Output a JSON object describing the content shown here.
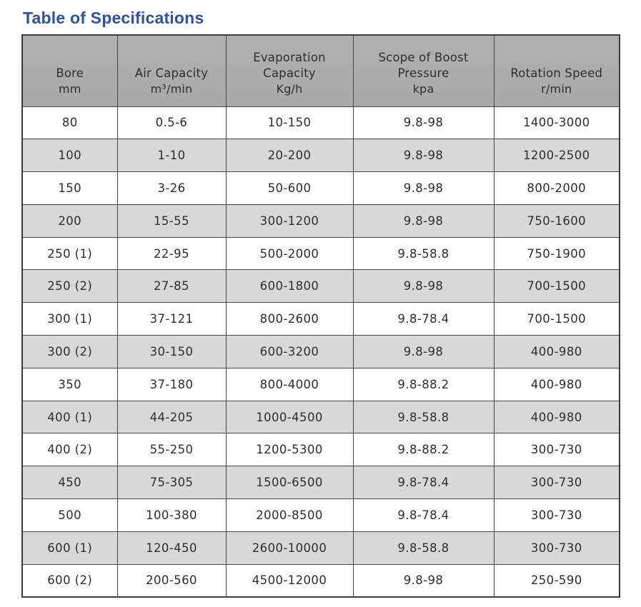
{
  "page": {
    "title": "Table of Specifications"
  },
  "theme": {
    "title_color": "#2a52a8",
    "header_bg": "#a9a9a9",
    "header_bg_top": "#b0b0b0",
    "row_bg": "#ffffff",
    "row_alt_bg": "#d8d8d8",
    "border_color": "#474747",
    "outer_border_color": "#3a3a3a",
    "text_color": "#2e2e2e"
  },
  "table": {
    "columns": [
      {
        "label": "Bore",
        "unit": "mm"
      },
      {
        "label": "Air Capacity",
        "unit": "m³/min"
      },
      {
        "label": "Evaporation Capacity",
        "unit": "Kg/h"
      },
      {
        "label": "Scope of Boost Pressure",
        "unit": "kpa"
      },
      {
        "label": "Rotation Speed",
        "unit": "r/min"
      }
    ],
    "rows": [
      [
        "80",
        "0.5-6",
        "10-150",
        "9.8-98",
        "1400-3000"
      ],
      [
        "100",
        "1-10",
        "20-200",
        "9.8-98",
        "1200-2500"
      ],
      [
        "150",
        "3-26",
        "50-600",
        "9.8-98",
        "800-2000"
      ],
      [
        "200",
        "15-55",
        "300-1200",
        "9.8-98",
        "750-1600"
      ],
      [
        "250 (1)",
        "22-95",
        "500-2000",
        "9.8-58.8",
        "750-1900"
      ],
      [
        "250 (2)",
        "27-85",
        "600-1800",
        "9.8-98",
        "700-1500"
      ],
      [
        "300 (1)",
        "37-121",
        "800-2600",
        "9.8-78.4",
        "700-1500"
      ],
      [
        "300 (2)",
        "30-150",
        "600-3200",
        "9.8-98",
        "400-980"
      ],
      [
        "350",
        "37-180",
        "800-4000",
        "9.8-88.2",
        "400-980"
      ],
      [
        "400 (1)",
        "44-205",
        "1000-4500",
        "9.8-58.8",
        "400-980"
      ],
      [
        "400 (2)",
        "55-250",
        "1200-5300",
        "9.8-88.2",
        "300-730"
      ],
      [
        "450",
        "75-305",
        "1500-6500",
        "9.8-78.4",
        "300-730"
      ],
      [
        "500",
        "100-380",
        "2000-8500",
        "9.8-78.4",
        "300-730"
      ],
      [
        "600 (1)",
        "120-450",
        "2600-10000",
        "9.8-58.8",
        "300-730"
      ],
      [
        "600 (2)",
        "200-560",
        "4500-12000",
        "9.8-98",
        "250-590"
      ]
    ]
  }
}
